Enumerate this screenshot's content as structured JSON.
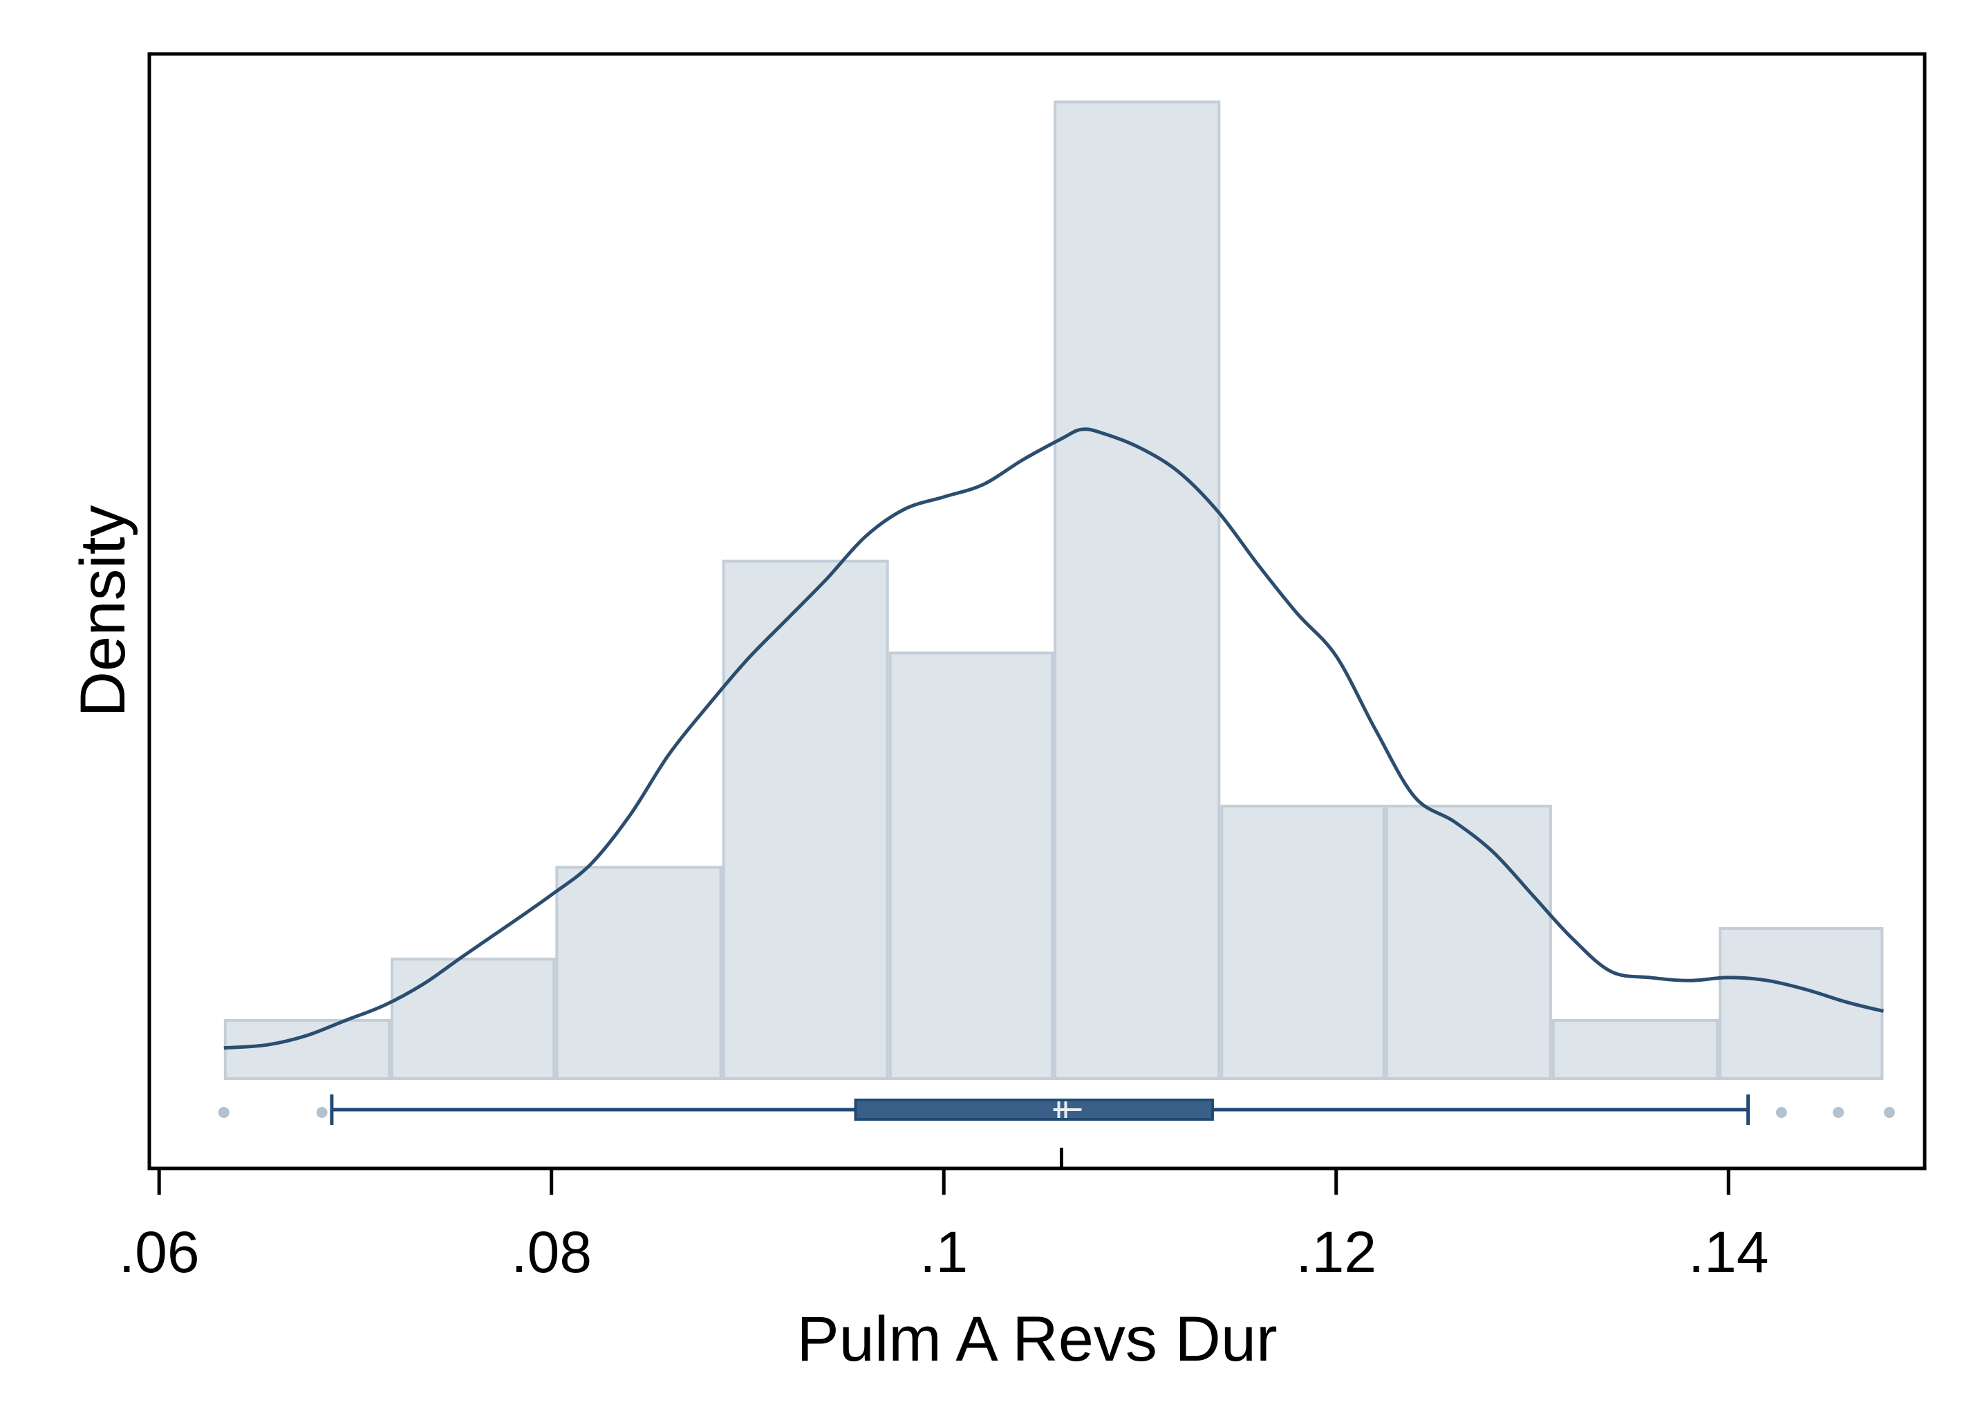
{
  "chart_data": {
    "type": "bar",
    "subtype": "histogram with kernel density and box plot",
    "title": "",
    "xlabel": "Pulm A Revs Dur",
    "ylabel": "Density",
    "xlim": [
      0.0595,
      0.15
    ],
    "ylim": [
      0,
      32
    ],
    "x_ticks": [
      {
        "value": 0.06,
        "label": ".06"
      },
      {
        "value": 0.08,
        "label": ".08"
      },
      {
        "value": 0.1,
        "label": ".1"
      },
      {
        "value": 0.12,
        "label": ".12"
      },
      {
        "value": 0.14,
        "label": ".14"
      }
    ],
    "y_ticks_shown": false,
    "grid": false,
    "histogram": {
      "bins": [
        {
          "start": 0.0633,
          "end": 0.0718,
          "density": 1.9
        },
        {
          "start": 0.0718,
          "end": 0.0802,
          "density": 3.9
        },
        {
          "start": 0.0802,
          "end": 0.0887,
          "density": 6.9
        },
        {
          "start": 0.0887,
          "end": 0.0972,
          "density": 16.9
        },
        {
          "start": 0.0972,
          "end": 0.1056,
          "density": 13.9
        },
        {
          "start": 0.1056,
          "end": 0.1141,
          "density": 31.9
        },
        {
          "start": 0.1141,
          "end": 0.1225,
          "density": 8.9
        },
        {
          "start": 0.1225,
          "end": 0.131,
          "density": 8.9
        },
        {
          "start": 0.131,
          "end": 0.1395,
          "density": 1.9
        },
        {
          "start": 0.1395,
          "end": 0.1479,
          "density": 4.9
        }
      ]
    },
    "density_curve": {
      "x": [
        0.0633,
        0.0655,
        0.0675,
        0.0695,
        0.0715,
        0.0735,
        0.0755,
        0.078,
        0.08,
        0.082,
        0.084,
        0.086,
        0.088,
        0.09,
        0.092,
        0.094,
        0.096,
        0.098,
        0.1,
        0.102,
        0.104,
        0.106,
        0.107,
        0.108,
        0.11,
        0.112,
        0.114,
        0.116,
        0.118,
        0.12,
        0.122,
        0.124,
        0.126,
        0.128,
        0.13,
        0.132,
        0.134,
        0.136,
        0.138,
        0.14,
        0.142,
        0.144,
        0.146,
        0.1479
      ],
      "y": [
        1.0,
        1.1,
        1.4,
        1.9,
        2.4,
        3.1,
        4.0,
        5.1,
        6.0,
        7.0,
        8.6,
        10.6,
        12.2,
        13.7,
        15.0,
        16.3,
        17.7,
        18.6,
        19.0,
        19.4,
        20.2,
        20.9,
        21.2,
        21.1,
        20.6,
        19.8,
        18.5,
        16.8,
        15.2,
        13.8,
        11.4,
        9.2,
        8.4,
        7.4,
        6.0,
        4.6,
        3.5,
        3.3,
        3.2,
        3.3,
        3.2,
        2.9,
        2.5,
        2.2
      ]
    },
    "box_plot": {
      "lower_adjacent": 0.0688,
      "q1": 0.0955,
      "median": 0.106,
      "mean": 0.1066,
      "q3": 0.1137,
      "upper_adjacent": 0.141,
      "outliers": [
        0.0633,
        0.0683,
        0.1427,
        0.1456,
        0.1482
      ]
    },
    "colors": {
      "histogram_fill": "#dde4ea",
      "histogram_edge": "#c3ced8",
      "curve": "#2b4d6f",
      "box": "#3a6089",
      "whisker": "#1f4b73",
      "outlier": "#b3c2d0",
      "frame": "#000000"
    }
  }
}
